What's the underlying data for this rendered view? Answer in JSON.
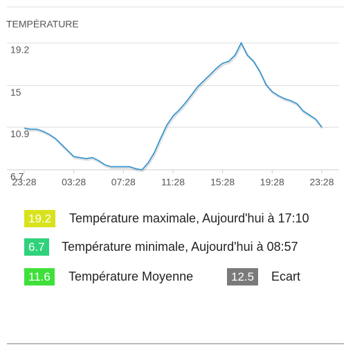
{
  "chart_data": {
    "type": "line",
    "title": "TEMPÉRATURE",
    "categories": [
      "23:28",
      null,
      null,
      null,
      null,
      null,
      null,
      null,
      "03:28",
      null,
      null,
      null,
      null,
      null,
      null,
      null,
      "07:28",
      null,
      null,
      null,
      null,
      null,
      null,
      null,
      "11:28",
      null,
      null,
      null,
      null,
      null,
      null,
      null,
      "15:28",
      null,
      null,
      null,
      null,
      null,
      null,
      null,
      "19:28",
      null,
      null,
      null,
      null,
      null,
      null,
      null,
      "23:28"
    ],
    "values": [
      10.8,
      10.7,
      10.7,
      10.5,
      10.2,
      9.8,
      9.2,
      8.6,
      8.0,
      7.9,
      7.8,
      7.9,
      7.6,
      7.2,
      7.0,
      7.0,
      7.0,
      7.0,
      6.8,
      6.7,
      7.4,
      8.4,
      9.8,
      11.1,
      12.0,
      12.6,
      13.3,
      14.1,
      14.9,
      15.5,
      16.1,
      16.7,
      17.2,
      17.4,
      18.0,
      19.2,
      18.0,
      17.4,
      16.4,
      15.1,
      14.4,
      14.0,
      13.7,
      13.5,
      13.2,
      12.5,
      12.1,
      11.7,
      10.9
    ],
    "color": "#2b90d0",
    "ylim": [
      6.7,
      19.2
    ],
    "yticks": [
      6.7,
      10.9,
      15,
      19.2
    ],
    "grid": true
  },
  "stats": [
    {
      "value": 19.2,
      "label": "Température maximale, Aujourd'hui à 17:10",
      "color": "#d8e31c"
    },
    {
      "value": 6.7,
      "label": "Température minimale, Aujourd'hui à 08:57",
      "color": "#2fd27a"
    },
    {
      "value": 11.6,
      "label": "Température Moyenne",
      "color": "#3fe03a"
    },
    {
      "value": 12.5,
      "label": "Ecart",
      "color": "#7a7a7a"
    }
  ]
}
